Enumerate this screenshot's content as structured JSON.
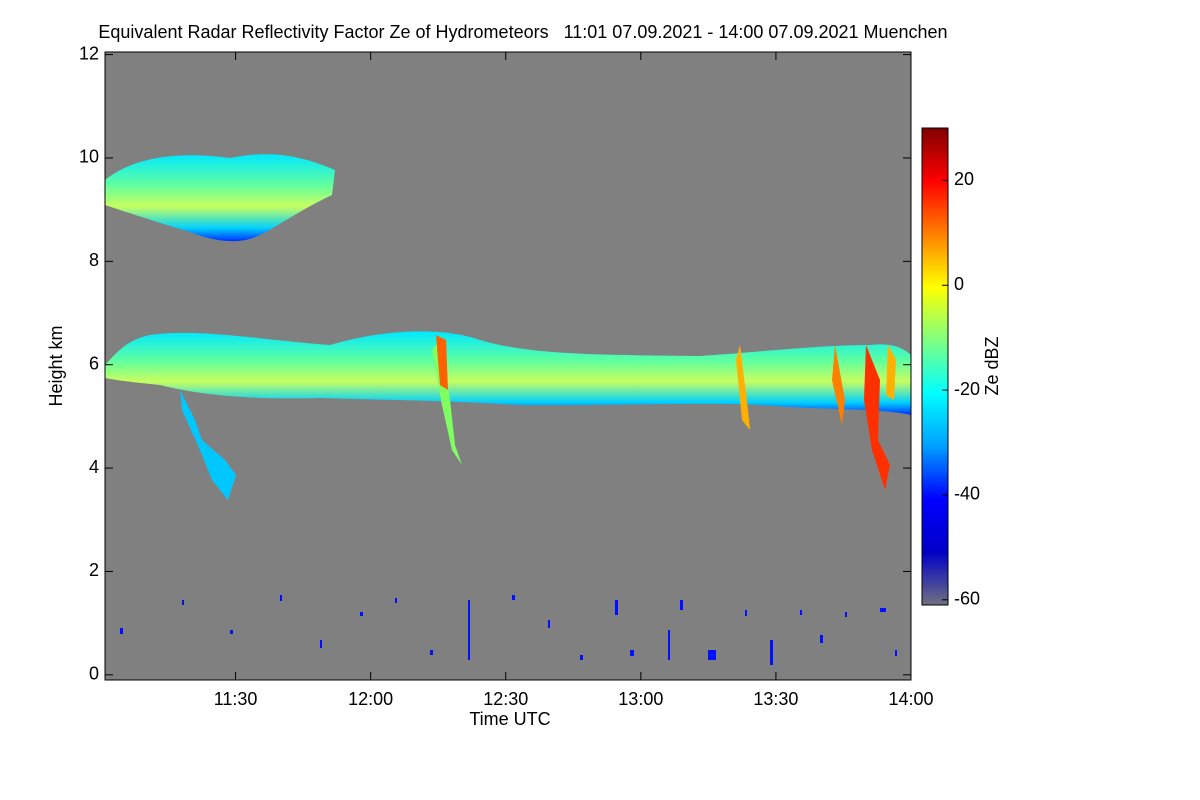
{
  "chart_data": {
    "type": "heatmap",
    "title": "Equivalent Radar Reflectivity Factor Ze of Hydrometeors   11:01 07.09.2021 - 14:00 07.09.2021 Muenchen",
    "xlabel": "Time UTC",
    "ylabel": "Height km",
    "xlim": [
      661,
      840
    ],
    "xticks": [
      {
        "value": 690,
        "label": "11:30"
      },
      {
        "value": 720,
        "label": "12:00"
      },
      {
        "value": 750,
        "label": "12:30"
      },
      {
        "value": 780,
        "label": "13:00"
      },
      {
        "value": 810,
        "label": "13:30"
      },
      {
        "value": 840,
        "label": "14:00"
      }
    ],
    "ylim": [
      -0.1,
      12.05
    ],
    "yticks": [
      0,
      2,
      4,
      6,
      8,
      10,
      12
    ],
    "background": "#808080",
    "colorbar": {
      "label": "Ze dBZ",
      "lim": [
        -61,
        30
      ],
      "ticks": [
        -60,
        -40,
        -20,
        0,
        20
      ],
      "colors": [
        "#707080",
        "#0000c8",
        "#0000ff",
        "#00a0ff",
        "#00ffff",
        "#80ff80",
        "#ffff00",
        "#ff8000",
        "#ff0000",
        "#800000"
      ]
    }
  }
}
